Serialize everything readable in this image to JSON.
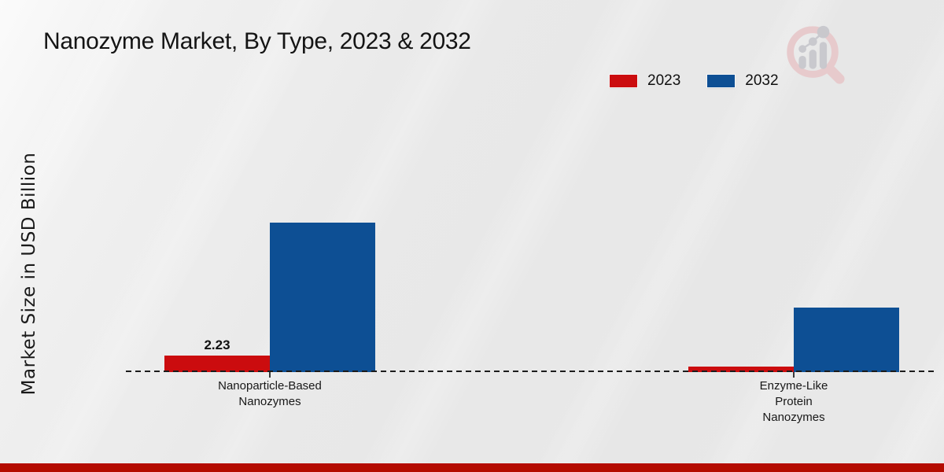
{
  "colors": {
    "series_2023_red": "#cb0c0e",
    "series_2032_blue": "#0d4f94",
    "footer_accent": "#b40b00",
    "baseline": "#1c1c1c",
    "background": "#e8e8e8"
  },
  "branding": {
    "logo_icon": "magnifier-bar-chart-logo-icon"
  },
  "chart_data": {
    "type": "bar",
    "title": "Nanozyme Market, By Type, 2023 & 2032",
    "xlabel": "",
    "ylabel": "Market Size in USD Billion",
    "legend_position": "top-right",
    "grid": false,
    "y_axis_ticks_visible": false,
    "baseline_style": "dashed",
    "categories": [
      [
        "Nanoparticle-Based",
        "Nanozymes"
      ],
      [
        "Enzyme-Like",
        "Protein",
        "Nanozymes"
      ]
    ],
    "series": [
      {
        "name": "2023",
        "color": "#cb0c0e",
        "values": [
          2.23,
          0.74
        ],
        "data_labels": [
          "2.23",
          null
        ]
      },
      {
        "name": "2032",
        "color": "#0d4f94",
        "values": [
          20.2,
          8.7
        ],
        "data_labels": [
          null,
          null
        ]
      }
    ]
  }
}
